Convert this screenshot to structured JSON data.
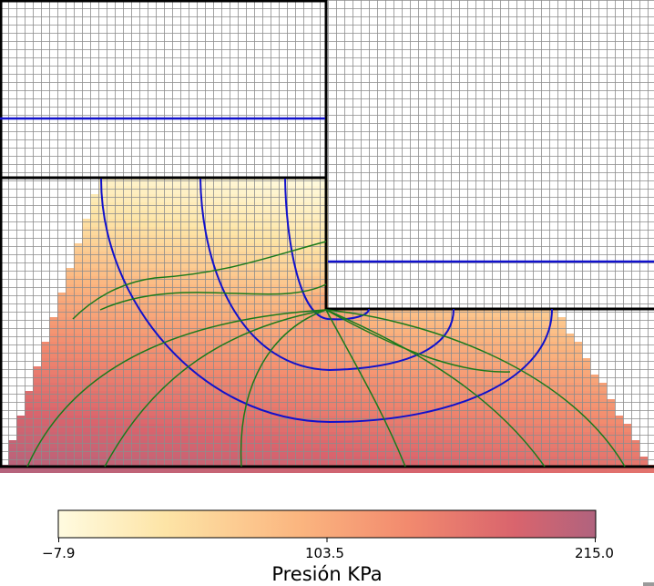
{
  "colorbar": {
    "title": "Presión KPa",
    "min_label": "−7.9",
    "mid_label": "103.5",
    "max_label": "215.0",
    "min": -7.9,
    "max": 215.0,
    "colors": [
      "#fffbe0",
      "#fde4a6",
      "#fbb57f",
      "#f28a6e",
      "#d9646d",
      "#b0637e"
    ]
  },
  "colors": {
    "grid": "#8c8c8c",
    "boundary": "#000000",
    "water_level": "#1111cc",
    "equipotential": "#1111cc",
    "flow_line": "#1a7a1a"
  }
}
